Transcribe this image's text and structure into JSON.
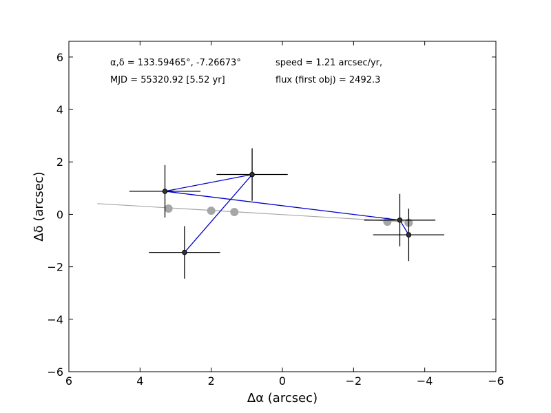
{
  "chart_data": {
    "type": "scatter",
    "title": "",
    "xlabel": "Δα (arcsec)",
    "ylabel": "Δδ (arcsec)",
    "xlim": [
      6,
      -6
    ],
    "ylim": [
      -6,
      6.6
    ],
    "x_ticks": [
      6,
      4,
      2,
      0,
      -2,
      -4,
      -6
    ],
    "y_ticks": [
      -6,
      -4,
      -2,
      0,
      2,
      4,
      6
    ],
    "x_tick_labels": [
      "6",
      "4",
      "2",
      "0",
      "−2",
      "−4",
      "−6"
    ],
    "y_tick_labels": [
      "−6",
      "−4",
      "−2",
      "0",
      "2",
      "4",
      "6"
    ],
    "grid": false,
    "annotations": {
      "coords": "α,δ = 133.59465°, -7.26673°",
      "mjd": "MJD = 55320.92 [5.52 yr]",
      "speed": "speed = 1.21 arcsec/yr,",
      "flux": "flux (first obj) = 2492.3"
    },
    "series": [
      {
        "kind": "errorbar",
        "color": "#000000",
        "line_color": "#0000cc",
        "points": [
          {
            "x": 3.3,
            "y": 0.88,
            "xerr": 1.0,
            "yerr": 1.0
          },
          {
            "x": 0.85,
            "y": 1.52,
            "xerr": 1.0,
            "yerr": 1.0
          },
          {
            "x": 2.75,
            "y": -1.45,
            "xerr": 1.0,
            "yerr": 1.0
          },
          {
            "x": -3.3,
            "y": -0.22,
            "xerr": 1.0,
            "yerr": 1.0
          },
          {
            "x": -3.55,
            "y": -0.78,
            "xerr": 1.0,
            "yerr": 1.0
          }
        ],
        "path_order": [
          2,
          1,
          0,
          3,
          4
        ]
      },
      {
        "kind": "fit_points",
        "color": "#a6a6a6",
        "points": [
          {
            "x": 3.2,
            "y": 0.22
          },
          {
            "x": 2.0,
            "y": 0.14
          },
          {
            "x": 1.35,
            "y": 0.09
          },
          {
            "x": -2.95,
            "y": -0.28
          },
          {
            "x": -3.55,
            "y": -0.32
          }
        ]
      },
      {
        "kind": "fit_line",
        "color": "#a6a6a6",
        "points": [
          {
            "x": 5.2,
            "y": 0.41
          },
          {
            "x": -3.6,
            "y": -0.3
          }
        ]
      }
    ]
  }
}
